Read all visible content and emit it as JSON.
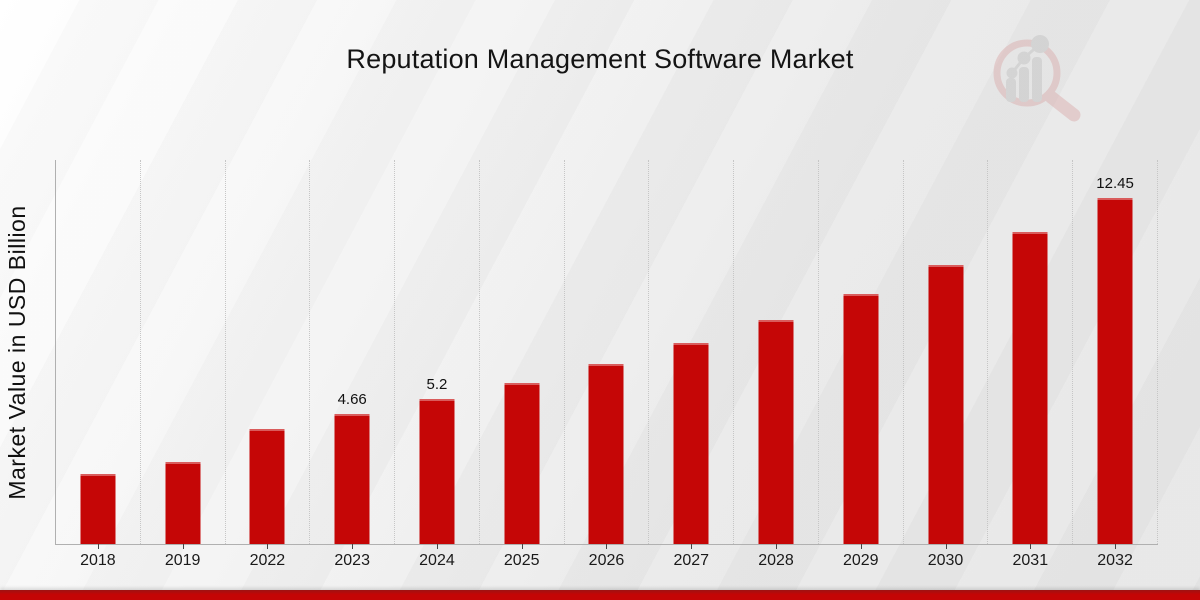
{
  "chart_data": {
    "type": "bar",
    "title": "Reputation Management Software Market",
    "xlabel": "",
    "ylabel": "Market Value in USD Billion",
    "categories": [
      "2018",
      "2019",
      "2022",
      "2023",
      "2024",
      "2025",
      "2026",
      "2027",
      "2028",
      "2029",
      "2030",
      "2031",
      "2032"
    ],
    "values": [
      2.5,
      2.95,
      4.15,
      4.66,
      5.2,
      5.8,
      6.47,
      7.22,
      8.05,
      9.0,
      10.02,
      11.2,
      12.45
    ],
    "bar_labels": [
      "",
      "",
      "",
      "4.66",
      "5.2",
      "",
      "",
      "",
      "",
      "",
      "",
      "",
      "12.45"
    ],
    "ylim": [
      0,
      13.8
    ],
    "grid": "vertical-dotted",
    "legend": "none",
    "bar_color": "#c50606",
    "accent_stripe_color": "#c40505",
    "accent_stripe_edge_color": "#9e1212"
  },
  "branding": {
    "logo": "magnifier-bar-chart-watermark"
  }
}
